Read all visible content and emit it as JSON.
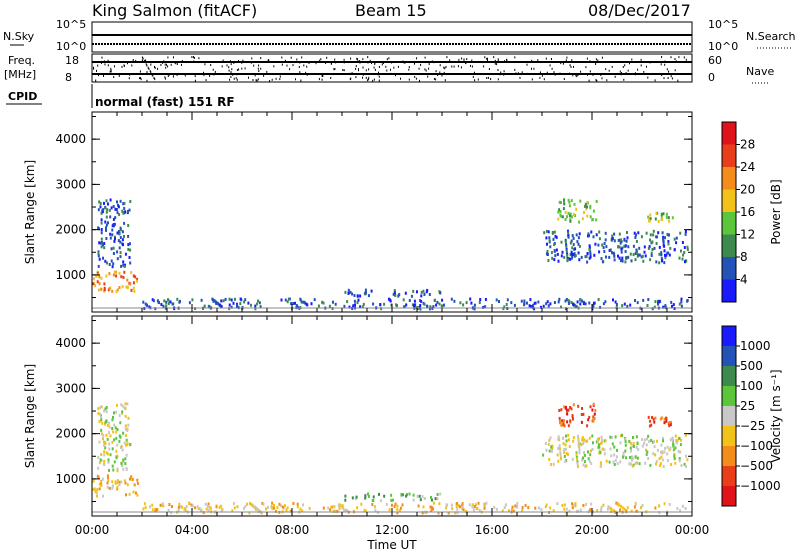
{
  "header": {
    "station": "King Salmon (fitACF)",
    "beam": "Beam 15",
    "date": "08/Dec/2017"
  },
  "top_panel": {
    "nsky_label": "N.Sky",
    "nsky_ticks": [
      "10^5",
      "10^0"
    ],
    "nsearch_label": "N.Search",
    "nsearch_ticks": [
      "10^5",
      "10^0"
    ],
    "freq_label": "Freq.",
    "freq_unit": "[MHz]",
    "freq_ticks": [
      "18",
      "8"
    ],
    "nave_label": "Nave",
    "nave_ticks": [
      "60",
      "0"
    ],
    "cpid_label": "CPID",
    "cpid_value": "normal (fast) 151 RF"
  },
  "chart_data": [
    {
      "type": "heatmap",
      "name": "power",
      "ylabel": "Slant Range [km]",
      "yticks": [
        1000,
        2000,
        3000,
        4000
      ],
      "ylim": [
        180,
        4600
      ],
      "xlim": [
        0,
        24
      ],
      "colorbar_label": "Power [dB]",
      "colorbar_ticks": [
        "4",
        "8",
        "12",
        "16",
        "20",
        "24",
        "28"
      ],
      "colors": [
        "#1a1aff",
        "#2453b8",
        "#3c8a4e",
        "#5cc63a",
        "#f2c21a",
        "#f28c1a",
        "#e83e1a",
        "#e0121a"
      ],
      "regions": [
        {
          "t0": 0.0,
          "t1": 1.8,
          "r0": 650,
          "r1": 1100,
          "level": 5
        },
        {
          "t0": 0.2,
          "t1": 1.5,
          "r0": 1200,
          "r1": 2700,
          "level": 1
        },
        {
          "t0": 2.0,
          "t1": 23.8,
          "r0": 280,
          "r1": 500,
          "level": 1
        },
        {
          "t0": 10.0,
          "t1": 14.0,
          "r0": 550,
          "r1": 700,
          "level": 1
        },
        {
          "t0": 18.6,
          "t1": 20.2,
          "r0": 2200,
          "r1": 2700,
          "level": 3
        },
        {
          "t0": 18.0,
          "t1": 23.8,
          "r0": 1300,
          "r1": 2000,
          "level": 1
        },
        {
          "t0": 22.2,
          "t1": 23.2,
          "r0": 2200,
          "r1": 2400,
          "level": 3
        }
      ]
    },
    {
      "type": "heatmap",
      "name": "velocity",
      "ylabel": "Slant Range [km]",
      "xlabel": "Time UT",
      "xticks": [
        "00:00",
        "04:00",
        "08:00",
        "12:00",
        "16:00",
        "20:00",
        "00:00"
      ],
      "yticks": [
        1000,
        2000,
        3000,
        4000
      ],
      "ylim": [
        180,
        4600
      ],
      "xlim": [
        0,
        24
      ],
      "colorbar_label": "Velocity [m s⁻¹]",
      "colorbar_ticks": [
        "1000",
        "500",
        "100",
        "25",
        "−25",
        "−100",
        "−500",
        "−1000"
      ],
      "colors": [
        "#1a1aff",
        "#2453b8",
        "#3c8a4e",
        "#5cc63a",
        "#c8c8c8",
        "#f2c21a",
        "#f28c1a",
        "#e83e1a",
        "#e0121a"
      ],
      "regions": [
        {
          "t0": 0.0,
          "t1": 1.8,
          "r0": 650,
          "r1": 1100,
          "level": 5
        },
        {
          "t0": 0.2,
          "t1": 1.5,
          "r0": 1200,
          "r1": 2700,
          "level": 4
        },
        {
          "t0": 2.0,
          "t1": 23.8,
          "r0": 280,
          "r1": 500,
          "level": 5
        },
        {
          "t0": 10.0,
          "t1": 14.0,
          "r0": 550,
          "r1": 700,
          "level": 3
        },
        {
          "t0": 18.6,
          "t1": 20.2,
          "r0": 2200,
          "r1": 2700,
          "level": 7
        },
        {
          "t0": 18.0,
          "t1": 23.8,
          "r0": 1300,
          "r1": 2000,
          "level": 4
        },
        {
          "t0": 22.2,
          "t1": 23.2,
          "r0": 2200,
          "r1": 2400,
          "level": 7
        }
      ]
    }
  ]
}
